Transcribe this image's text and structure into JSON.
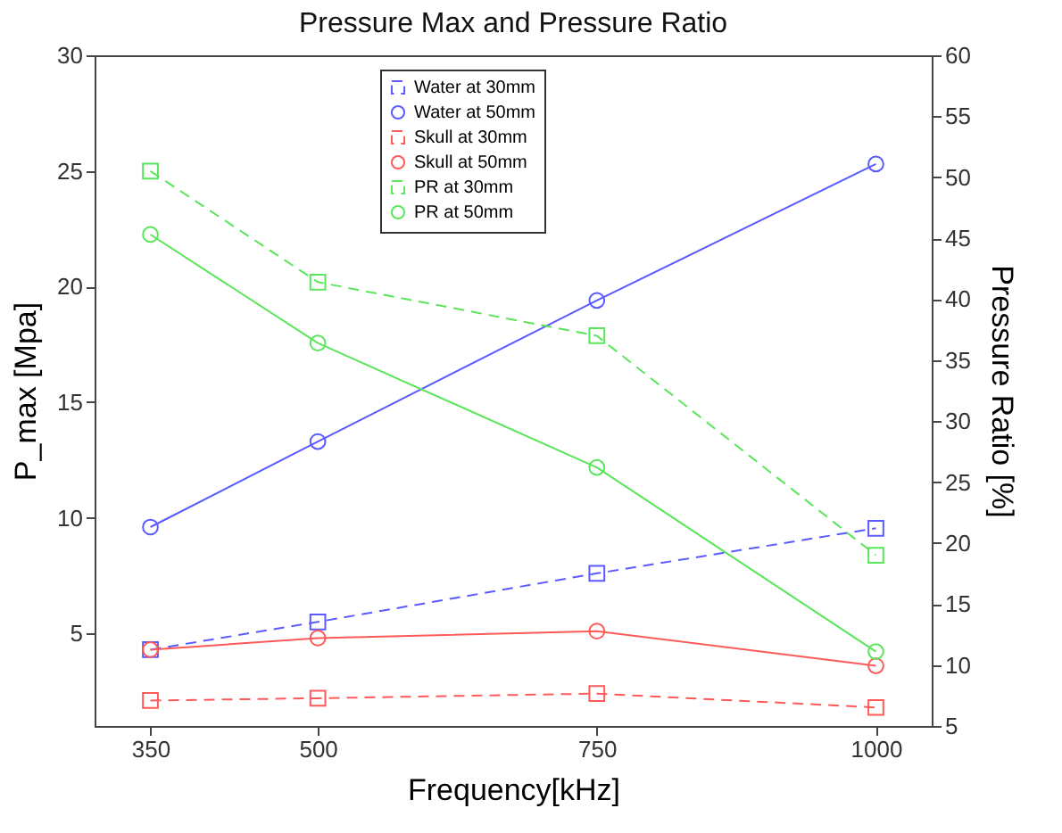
{
  "chart_data": {
    "type": "line",
    "title": "Pressure Max and Pressure Ratio",
    "xlabel": "Frequency[kHz]",
    "ylabel": "P_max [Mpa]",
    "y2label": "Pressure Ratio [%]",
    "x": [
      350,
      500,
      750,
      1000
    ],
    "xlim": [
      300,
      1050
    ],
    "xticks": [
      350,
      500,
      750,
      1000
    ],
    "ylim": [
      1,
      30
    ],
    "yticks": [
      5,
      10,
      15,
      20,
      25,
      30
    ],
    "y2lim": [
      5,
      60
    ],
    "y2ticks": [
      5,
      10,
      15,
      20,
      25,
      30,
      35,
      40,
      45,
      50,
      55,
      60
    ],
    "grid": false,
    "legend": "top",
    "series": [
      {
        "name": "Water at 30mm",
        "color": "#5a5aff",
        "marker": "square",
        "line_style": "dashed",
        "values": [
          4.3,
          5.5,
          7.6,
          9.55
        ]
      },
      {
        "name": "Water at 50mm",
        "color": "#5a5aff",
        "marker": "circle",
        "line_style": "solid",
        "values": [
          9.6,
          13.3,
          19.4,
          25.3
        ]
      },
      {
        "name": "Skull at 30mm",
        "color": "#ff5a5a",
        "marker": "square",
        "line_style": "dashed",
        "values": [
          2.1,
          2.2,
          2.4,
          1.8
        ]
      },
      {
        "name": "Skull at 50mm",
        "color": "#ff5a5a",
        "marker": "circle",
        "line_style": "solid",
        "values": [
          4.3,
          4.8,
          5.1,
          3.6
        ]
      },
      {
        "name": "PR at 30mm",
        "color": "#5ae65a",
        "marker": "square",
        "line_style": "dashed",
        "axis": "y2",
        "values": [
          50.5,
          41.4,
          37,
          19
        ]
      },
      {
        "name": "PR at 50mm",
        "color": "#5ae65a",
        "marker": "circle",
        "line_style": "solid",
        "axis": "y2",
        "values": [
          45.3,
          36.4,
          26.2,
          11.1
        ]
      }
    ]
  }
}
